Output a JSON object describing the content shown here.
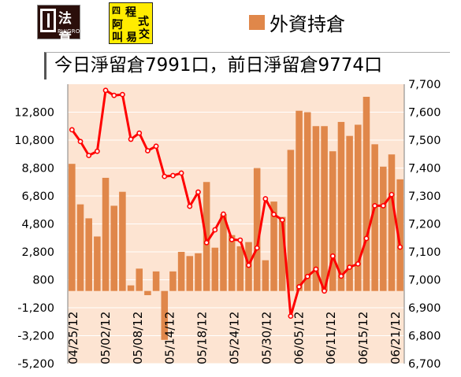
{
  "logos": {
    "left_text": "法意",
    "left_sub": "PHIGROUP",
    "right_chars": [
      "四",
      "程",
      "式",
      "阿",
      "叫",
      "易",
      "交"
    ]
  },
  "legend": {
    "label": "外資持倉",
    "color": "#e0874a"
  },
  "headline": "今日淨留倉7991口，前日淨留倉9774口",
  "chart_data": {
    "type": "bar",
    "bar_color": "#e0874a",
    "line_color": "#ff0000",
    "plot_bg": "#fde4d2",
    "grid": true,
    "left_axis": {
      "ylim": [
        -5200,
        14800
      ],
      "ticks": [
        12800,
        10800,
        8800,
        6800,
        4800,
        2800,
        800,
        -1200,
        -3200,
        -5200
      ],
      "tick_labels": [
        "12,800",
        "10,800",
        "8,800",
        "6,800",
        "4,800",
        "2,800",
        "800",
        "-1,200",
        "-3,200",
        "-5,200"
      ]
    },
    "right_axis": {
      "ylim": [
        6700,
        7700
      ],
      "ticks": [
        7700,
        7600,
        7500,
        7400,
        7300,
        7200,
        7100,
        7000,
        6900,
        6800,
        6700
      ],
      "tick_labels": [
        "7,700",
        "7,600",
        "7,500",
        "7,400",
        "7,300",
        "7,200",
        "7,100",
        "7,000",
        "6,900",
        "6,800",
        "6,700"
      ]
    },
    "x_tick_labels": [
      "04/25/12",
      "05/02/12",
      "05/08/12",
      "05/14/12",
      "05/18/12",
      "05/24/12",
      "05/30/12",
      "06/05/12",
      "06/11/12",
      "06/15/12",
      "06/21/12"
    ],
    "series": [
      {
        "name": "外資持倉",
        "kind": "bar",
        "axis": "left",
        "values": [
          9100,
          6200,
          5200,
          3900,
          8100,
          6100,
          7100,
          400,
          1600,
          -300,
          1400,
          -3500,
          1400,
          2800,
          2500,
          2700,
          7800,
          3100,
          5500,
          4000,
          3200,
          3500,
          8800,
          2200,
          6400,
          5300,
          10100,
          12900,
          12800,
          11800,
          11800,
          10000,
          12100,
          11100,
          11900,
          13900,
          10500,
          8900,
          9774,
          7991
        ]
      },
      {
        "kind": "line",
        "axis": "right",
        "values": [
          7537,
          7495,
          7445,
          7460,
          7678,
          7660,
          7663,
          7503,
          7525,
          7462,
          7478,
          7370,
          7373,
          7382,
          7263,
          7314,
          7133,
          7179,
          7235,
          7144,
          7142,
          7052,
          7114,
          7290,
          7234,
          7214,
          6870,
          6975,
          7012,
          7038,
          6960,
          7085,
          7013,
          7045,
          7057,
          7148,
          7265,
          7265,
          7305,
          7117
        ]
      }
    ]
  }
}
